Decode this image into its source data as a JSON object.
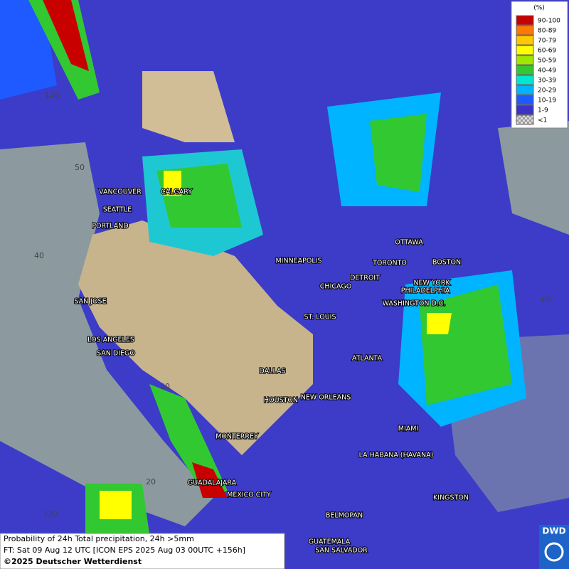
{
  "legend": {
    "title": "(%)",
    "entries": [
      {
        "label": "90-100",
        "color": "#c80000"
      },
      {
        "label": "80-89",
        "color": "#ff7800"
      },
      {
        "label": "70-79",
        "color": "#ffc800"
      },
      {
        "label": "60-69",
        "color": "#ffff00"
      },
      {
        "label": "50-59",
        "color": "#a0e600"
      },
      {
        "label": "40-49",
        "color": "#32c832"
      },
      {
        "label": "30-39",
        "color": "#00e6d2"
      },
      {
        "label": "20-29",
        "color": "#00b4ff"
      },
      {
        "label": "10-19",
        "color": "#1e5aff"
      },
      {
        "label": "1-9",
        "color": "#3c32c8"
      },
      {
        "label": "<1",
        "color": "checker"
      }
    ]
  },
  "grid_labels": [
    "140",
    "50",
    "40",
    "30",
    "20",
    "120",
    "60",
    "60"
  ],
  "cities": [
    "VANCOUVER",
    "CALGARY",
    "SEATTLE",
    "PORTLAND",
    "MINNEAPOLIS",
    "OTTAWA",
    "TORONTO",
    "BOSTON",
    "DETROIT",
    "NEW YORK",
    "CHICAGO",
    "PHILADELPHIA",
    "WASHINGTON D.C.",
    "SAN JOSE",
    "ST. LOUIS",
    "LOS ANGELES",
    "SAN DIEGO",
    "ATLANTA",
    "DALLAS",
    "HOUSTON",
    "NEW ORLEANS",
    "MIAMI",
    "MONTERREY",
    "LA HABANA (HAVANA)",
    "GUADALAJARA",
    "MEXICO CITY",
    "KINGSTON",
    "BELMOPAN",
    "GUATEMALA",
    "SAN SALVADOR"
  ],
  "footer": {
    "line1": "Probability of 24h Total precipitation, 24h >5mm",
    "line2": "FT: Sat 09 Aug 12 UTC [ICON EPS 2025 Aug 03 00UTC +156h]",
    "line3": "©2025 Deutscher Wetterdienst"
  },
  "logo": "DWD"
}
